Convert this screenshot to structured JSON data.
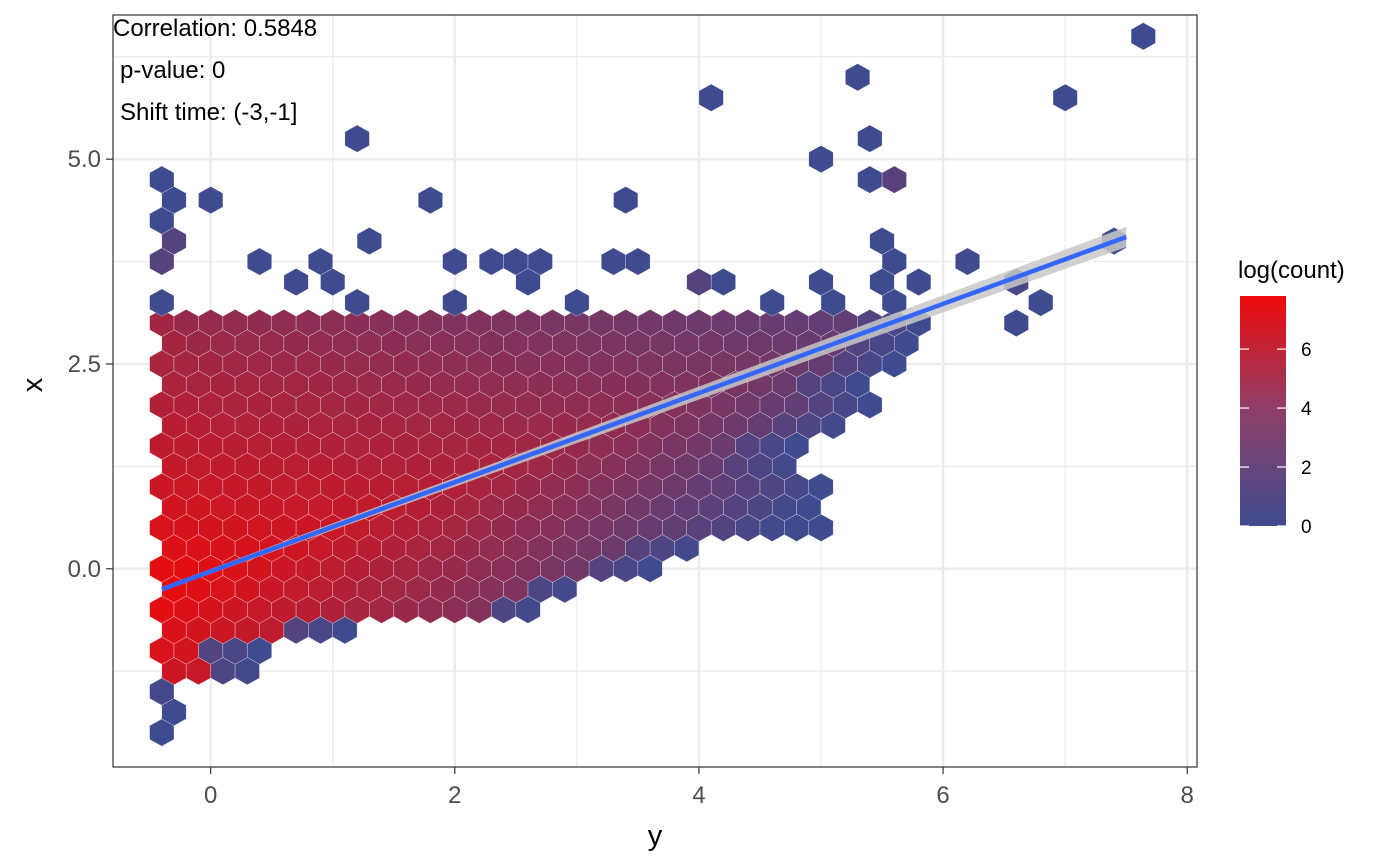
{
  "chart_data": {
    "type": "hexbin",
    "xlabel": "y",
    "ylabel": "x",
    "xlim": [
      -0.8,
      8.08
    ],
    "ylim": [
      -2.42,
      6.76
    ],
    "x_ticks": [
      0,
      2,
      4,
      6,
      8
    ],
    "x_tick_labels": [
      "0",
      "2",
      "4",
      "6",
      "8"
    ],
    "y_ticks": [
      0.0,
      2.5,
      5.0
    ],
    "y_tick_labels": [
      "0.0",
      "2.5",
      "5.0"
    ],
    "grid": true,
    "hex_width": 0.2,
    "annotations": [
      "Correlation:  0.5848",
      "p-value:  0",
      "Shift time:  (-3,-1]"
    ],
    "legend": {
      "title": "log(count)",
      "position": "right",
      "range": [
        0,
        7.8
      ],
      "ticks": [
        0,
        2,
        4,
        6
      ],
      "tick_labels": [
        "0",
        "2",
        "4",
        "6"
      ],
      "low_color": "#3f4b8f",
      "high_color": "#ee0a0a"
    },
    "colors": {
      "fit_line": "#3366ff",
      "fit_band": "#c8c8c8",
      "panel_border": "#333333",
      "grid": "#ebebeb"
    },
    "regression_line": {
      "x": [
        -0.4,
        7.5
      ],
      "y": [
        -0.25,
        4.05
      ],
      "se_band": 0.05
    },
    "outlier_bins": [
      [
        7.64,
        6.5,
        0
      ],
      [
        5.3,
        6.0,
        0
      ],
      [
        4.1,
        5.75,
        0
      ],
      [
        7.0,
        5.75,
        0
      ],
      [
        1.2,
        5.25,
        0
      ],
      [
        5.4,
        5.25,
        0
      ],
      [
        5.0,
        5.0,
        0
      ],
      [
        -0.4,
        4.75,
        0
      ],
      [
        5.4,
        4.75,
        0
      ],
      [
        5.6,
        4.75,
        1.2
      ],
      [
        -0.3,
        4.5,
        0
      ],
      [
        0.0,
        4.5,
        0
      ],
      [
        1.8,
        4.5,
        0
      ],
      [
        3.4,
        4.5,
        0
      ],
      [
        -0.4,
        4.25,
        0
      ],
      [
        -0.3,
        4.0,
        1.0
      ],
      [
        1.3,
        4.0,
        0
      ],
      [
        5.5,
        4.0,
        0
      ],
      [
        7.4,
        4.0,
        0
      ],
      [
        -0.4,
        3.75,
        1.0
      ],
      [
        0.4,
        3.75,
        0
      ],
      [
        0.9,
        3.75,
        0
      ],
      [
        2.0,
        3.75,
        0
      ],
      [
        2.3,
        3.75,
        0
      ],
      [
        2.5,
        3.75,
        0
      ],
      [
        2.7,
        3.75,
        0
      ],
      [
        3.3,
        3.75,
        0
      ],
      [
        3.5,
        3.75,
        0
      ],
      [
        5.6,
        3.75,
        0
      ],
      [
        6.2,
        3.75,
        0
      ],
      [
        0.7,
        3.5,
        0
      ],
      [
        1.0,
        3.5,
        0
      ],
      [
        2.6,
        3.5,
        0
      ],
      [
        4.0,
        3.5,
        1.0
      ],
      [
        4.2,
        3.5,
        0
      ],
      [
        5.0,
        3.5,
        0
      ],
      [
        5.5,
        3.5,
        0
      ],
      [
        5.8,
        3.5,
        0
      ],
      [
        6.6,
        3.5,
        0.5
      ],
      [
        -0.4,
        3.25,
        0
      ],
      [
        1.2,
        3.25,
        0
      ],
      [
        2.0,
        3.25,
        0
      ],
      [
        3.0,
        3.25,
        0
      ],
      [
        4.6,
        3.25,
        0
      ],
      [
        5.1,
        3.25,
        0
      ],
      [
        5.6,
        3.25,
        0
      ],
      [
        6.8,
        3.25,
        0
      ],
      [
        6.6,
        3.0,
        0
      ]
    ],
    "dense_region": {
      "y_range": [
        -2.0,
        3.0
      ],
      "x_left": -0.4,
      "x_right_by_row": [
        [
          3.0,
          5.8
        ],
        [
          2.75,
          5.7
        ],
        [
          2.5,
          5.6
        ],
        [
          2.25,
          5.3
        ],
        [
          2.0,
          5.4
        ],
        [
          1.75,
          5.2
        ],
        [
          1.5,
          4.8
        ],
        [
          1.25,
          4.8
        ],
        [
          1.0,
          5.0
        ],
        [
          0.75,
          4.9
        ],
        [
          0.5,
          5.0
        ],
        [
          0.25,
          4.0
        ],
        [
          0.0,
          3.6
        ],
        [
          -0.25,
          3.0
        ],
        [
          -0.5,
          2.7
        ],
        [
          -0.75,
          1.1
        ],
        [
          -1.0,
          0.4
        ],
        [
          -1.25,
          0.4
        ],
        [
          -1.5,
          -0.3
        ],
        [
          -1.75,
          -0.3
        ],
        [
          -2.0,
          -0.4
        ]
      ]
    }
  }
}
